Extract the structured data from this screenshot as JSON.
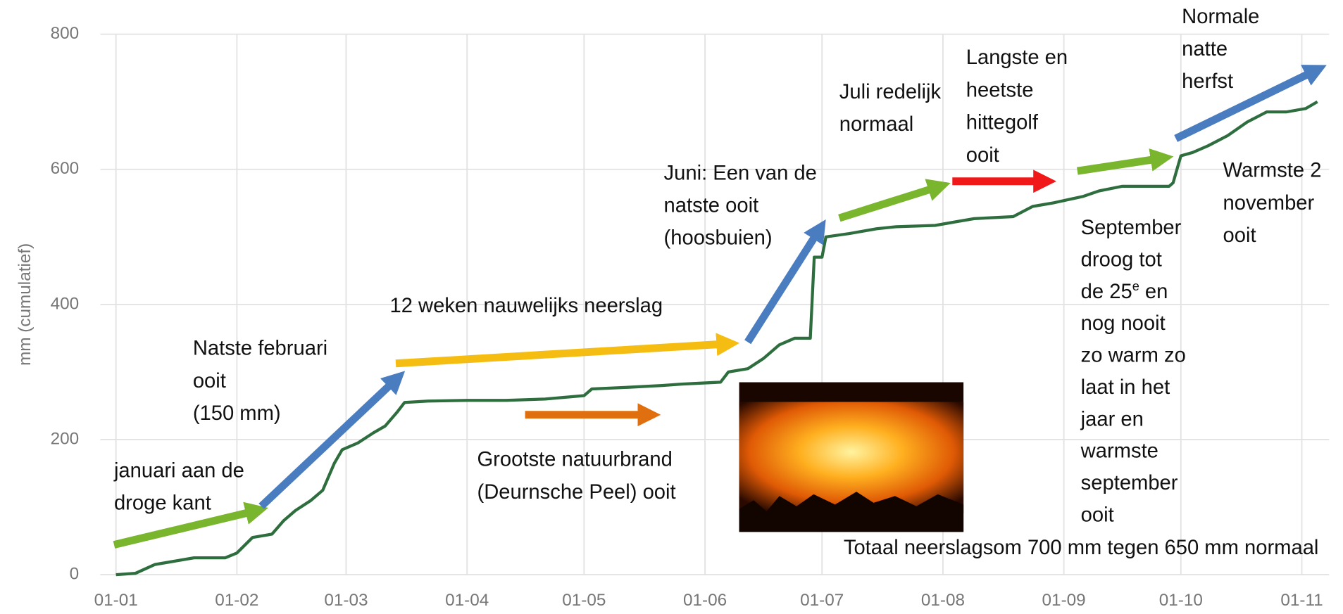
{
  "chart_data": {
    "type": "line",
    "y_label": "mm (cumulatief)",
    "color": "#2e6e3e",
    "grid": true,
    "xlim": [
      -4,
      311
    ],
    "ylim": [
      0,
      800
    ],
    "yticks": [
      0,
      200,
      400,
      600,
      800
    ],
    "xticks": [
      {
        "value": 0,
        "label": "01-01"
      },
      {
        "value": 31,
        "label": "01-02"
      },
      {
        "value": 59,
        "label": "01-03"
      },
      {
        "value": 90,
        "label": "01-04"
      },
      {
        "value": 120,
        "label": "01-05"
      },
      {
        "value": 151,
        "label": "01-06"
      },
      {
        "value": 181,
        "label": "01-07"
      },
      {
        "value": 212,
        "label": "01-08"
      },
      {
        "value": 243,
        "label": "01-09"
      },
      {
        "value": 273,
        "label": "01-10"
      },
      {
        "value": 304,
        "label": "01-11"
      }
    ],
    "x": [
      0,
      5,
      10,
      15,
      20,
      25,
      28,
      31,
      35,
      40,
      43,
      46,
      50,
      53,
      56,
      58,
      62,
      66,
      69,
      72,
      74,
      80,
      90,
      100,
      110,
      120,
      122,
      130,
      140,
      145,
      155,
      157,
      162,
      166,
      170,
      174,
      178,
      179,
      181,
      182,
      188,
      195,
      200,
      210,
      215,
      220,
      230,
      235,
      240,
      248,
      252,
      258,
      262,
      270,
      271,
      272,
      273,
      276,
      280,
      285,
      290,
      295,
      300,
      305,
      308
    ],
    "values": [
      0,
      2,
      15,
      20,
      25,
      25,
      25,
      32,
      55,
      60,
      80,
      95,
      110,
      125,
      165,
      185,
      195,
      210,
      220,
      240,
      255,
      257,
      258,
      258,
      260,
      265,
      275,
      277,
      280,
      282,
      285,
      300,
      305,
      320,
      340,
      350,
      350,
      470,
      470,
      500,
      505,
      512,
      515,
      517,
      522,
      527,
      530,
      545,
      550,
      560,
      568,
      575,
      575,
      575,
      580,
      600,
      620,
      625,
      635,
      650,
      670,
      685,
      685,
      690,
      700
    ],
    "annotations": [
      {
        "lines": [
          "januari aan de",
          "droge kant"
        ]
      },
      {
        "lines": [
          "Natste februari",
          "ooit",
          "(150 mm)"
        ]
      },
      {
        "lines": [
          "12 weken nauwelijks neerslag"
        ]
      },
      {
        "lines": [
          "Grootste natuurbrand",
          "(Deurnsche Peel) ooit"
        ]
      },
      {
        "lines": [
          "Juni: Een van de",
          "natste ooit",
          "(hoosbuien)"
        ]
      },
      {
        "lines": [
          "Juli redelijk",
          "normaal"
        ]
      },
      {
        "lines": [
          "Langste en",
          "heetste",
          "hittegolf",
          "ooit"
        ]
      },
      {
        "lines": [
          "Normale",
          "natte",
          "herfst"
        ]
      },
      {
        "lines": [
          "Warmste 2",
          "november",
          "ooit"
        ]
      },
      {
        "lines": [
          "September",
          "droog tot",
          [
            "de 25",
            "e",
            " en"
          ],
          "nog nooit",
          "zo warm zo",
          "laat in het",
          "jaar en",
          "warmste",
          "september",
          "ooit"
        ]
      },
      {
        "lines": [
          "Totaal neerslagsom 700 mm tegen 650 mm normaal"
        ]
      }
    ]
  }
}
